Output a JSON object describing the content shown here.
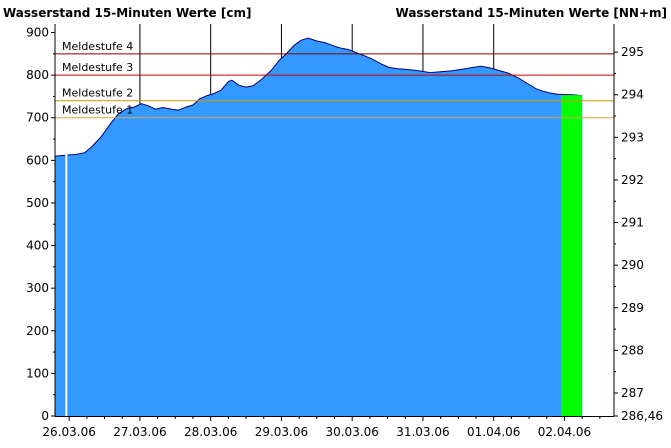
{
  "chart_data": {
    "type": "area",
    "title_left": "Wasserstand 15-Minuten Werte [cm]",
    "title_right": "Wasserstand 15-Minuten Werte [NN+m]",
    "ylim": [
      0,
      920
    ],
    "y_ticks": [
      0,
      100,
      200,
      300,
      400,
      500,
      600,
      700,
      800,
      900
    ],
    "y2_ticks": [
      "286,46",
      "287",
      "288",
      "289",
      "290",
      "291",
      "292",
      "293",
      "294",
      "295"
    ],
    "y2_tick_cm": [
      0,
      54,
      154,
      254,
      354,
      454,
      554,
      654,
      754,
      854
    ],
    "x_labels": [
      "26.03.06",
      "27.03.06",
      "28.03.06",
      "29.03.06",
      "30.03.06",
      "31.03.06",
      "01.04.06",
      "02.04.06"
    ],
    "x_label_days": [
      0,
      1,
      2,
      3,
      4,
      5,
      6,
      7
    ],
    "day_lines": [
      1,
      2,
      3,
      4,
      5,
      6
    ],
    "xlim_days": [
      -0.2,
      7.7
    ],
    "series": [
      {
        "values": [
          {
            "x": -0.2,
            "y": 610
          },
          {
            "x": -0.05,
            "y": 612
          },
          {
            "x": 0.1,
            "y": 614
          },
          {
            "x": 0.22,
            "y": 618
          },
          {
            "x": 0.32,
            "y": 632
          },
          {
            "x": 0.45,
            "y": 655
          },
          {
            "x": 0.58,
            "y": 685
          },
          {
            "x": 0.7,
            "y": 710
          },
          {
            "x": 0.82,
            "y": 722
          },
          {
            "x": 0.92,
            "y": 725
          },
          {
            "x": 1.02,
            "y": 733
          },
          {
            "x": 1.12,
            "y": 728
          },
          {
            "x": 1.22,
            "y": 720
          },
          {
            "x": 1.32,
            "y": 724
          },
          {
            "x": 1.45,
            "y": 720
          },
          {
            "x": 1.55,
            "y": 718
          },
          {
            "x": 1.65,
            "y": 725
          },
          {
            "x": 1.75,
            "y": 730
          },
          {
            "x": 1.85,
            "y": 745
          },
          {
            "x": 1.95,
            "y": 752
          },
          {
            "x": 2.05,
            "y": 757
          },
          {
            "x": 2.15,
            "y": 765
          },
          {
            "x": 2.25,
            "y": 785
          },
          {
            "x": 2.3,
            "y": 788
          },
          {
            "x": 2.4,
            "y": 776
          },
          {
            "x": 2.5,
            "y": 772
          },
          {
            "x": 2.6,
            "y": 775
          },
          {
            "x": 2.72,
            "y": 790
          },
          {
            "x": 2.85,
            "y": 810
          },
          {
            "x": 2.97,
            "y": 835
          },
          {
            "x": 3.08,
            "y": 852
          },
          {
            "x": 3.18,
            "y": 870
          },
          {
            "x": 3.28,
            "y": 882
          },
          {
            "x": 3.38,
            "y": 887
          },
          {
            "x": 3.5,
            "y": 880
          },
          {
            "x": 3.62,
            "y": 876
          },
          {
            "x": 3.75,
            "y": 868
          },
          {
            "x": 3.85,
            "y": 863
          },
          {
            "x": 3.95,
            "y": 860
          },
          {
            "x": 4.05,
            "y": 853
          },
          {
            "x": 4.15,
            "y": 847
          },
          {
            "x": 4.28,
            "y": 838
          },
          {
            "x": 4.4,
            "y": 827
          },
          {
            "x": 4.52,
            "y": 818
          },
          {
            "x": 4.65,
            "y": 815
          },
          {
            "x": 4.8,
            "y": 813
          },
          {
            "x": 4.95,
            "y": 810
          },
          {
            "x": 5.1,
            "y": 806
          },
          {
            "x": 5.25,
            "y": 808
          },
          {
            "x": 5.4,
            "y": 810
          },
          {
            "x": 5.55,
            "y": 814
          },
          {
            "x": 5.7,
            "y": 818
          },
          {
            "x": 5.82,
            "y": 821
          },
          {
            "x": 5.95,
            "y": 817
          },
          {
            "x": 6.05,
            "y": 812
          },
          {
            "x": 6.2,
            "y": 805
          },
          {
            "x": 6.35,
            "y": 793
          },
          {
            "x": 6.5,
            "y": 778
          },
          {
            "x": 6.6,
            "y": 768
          },
          {
            "x": 6.7,
            "y": 762
          },
          {
            "x": 6.8,
            "y": 758
          },
          {
            "x": 6.9,
            "y": 755
          },
          {
            "x": 7.1,
            "y": 754
          },
          {
            "x": 7.25,
            "y": 752
          }
        ],
        "color": "#3399FF"
      }
    ],
    "forecast": {
      "x_start": 6.95,
      "x_end": 7.25,
      "y": 753,
      "color": "#00FF00"
    },
    "gap": {
      "x": -0.04,
      "color": "#FFFFFF"
    },
    "thresholds": [
      {
        "label": "Meldestufe 4",
        "value": 850,
        "color": "#800000"
      },
      {
        "label": "Meldestufe 3",
        "value": 800,
        "color": "#CC0000"
      },
      {
        "label": "Meldestufe 2",
        "value": 740,
        "color": "#CC9900"
      },
      {
        "label": "Meldestufe 1",
        "value": 700,
        "color": "#D4A94A"
      }
    ]
  }
}
